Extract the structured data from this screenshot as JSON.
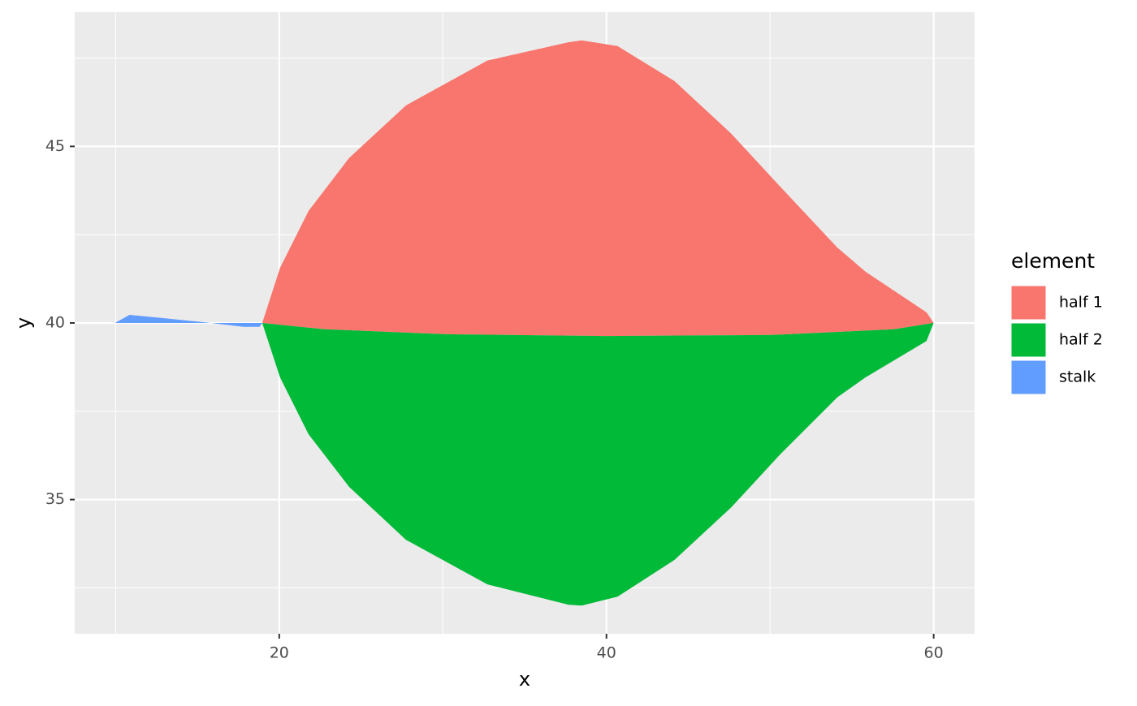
{
  "chart_data": {
    "type": "polygon",
    "x_label": "x",
    "y_label": "y",
    "xlim": [
      7.5,
      62.5
    ],
    "ylim": [
      31.2,
      48.8
    ],
    "xticks": [
      20,
      40,
      60
    ],
    "yticks": [
      35,
      40,
      45
    ],
    "xminor": [
      10,
      30,
      50
    ],
    "yminor": [
      32.5,
      37.5,
      42.5,
      47.5
    ],
    "grid": true,
    "legend_title": "element",
    "legend": "right",
    "series": [
      {
        "name": "half 1",
        "color": "#F8766D",
        "x": [
          18.96,
          20.05,
          21.79,
          24.27,
          27.75,
          32.72,
          37.69,
          38.49,
          40.68,
          44.16,
          47.63,
          50.62,
          54.1,
          55.84,
          59.56,
          60.0,
          57.57,
          50.12,
          40,
          30.24,
          22.78
        ],
        "y": [
          40.0,
          41.56,
          43.17,
          44.67,
          46.16,
          47.43,
          47.95,
          48.0,
          47.84,
          46.85,
          45.36,
          43.86,
          42.14,
          41.45,
          40.3,
          40.0,
          39.82,
          39.66,
          39.63,
          39.68,
          39.82
        ]
      },
      {
        "name": "half 2",
        "color": "#00BA38",
        "x": [
          18.96,
          20.05,
          21.79,
          24.27,
          27.75,
          32.72,
          37.69,
          38.49,
          40.68,
          44.16,
          47.63,
          50.62,
          54.1,
          55.84,
          59.56,
          60.0,
          57.57,
          50.12,
          40,
          30.24,
          22.78
        ],
        "y": [
          40.0,
          38.46,
          36.85,
          35.36,
          33.86,
          32.6,
          32.02,
          32.0,
          32.25,
          33.29,
          34.78,
          36.28,
          37.89,
          38.46,
          39.49,
          40.0,
          39.82,
          39.66,
          39.63,
          39.68,
          39.82
        ]
      },
      {
        "name": "stalk",
        "color": "#619CFF",
        "x": [
          9.96,
          10.85,
          12.84,
          15.83,
          17.81,
          18.8,
          18.96
        ],
        "y": [
          40.0,
          40.23,
          40.14,
          40.0,
          39.89,
          39.89,
          40.0
        ]
      }
    ]
  }
}
